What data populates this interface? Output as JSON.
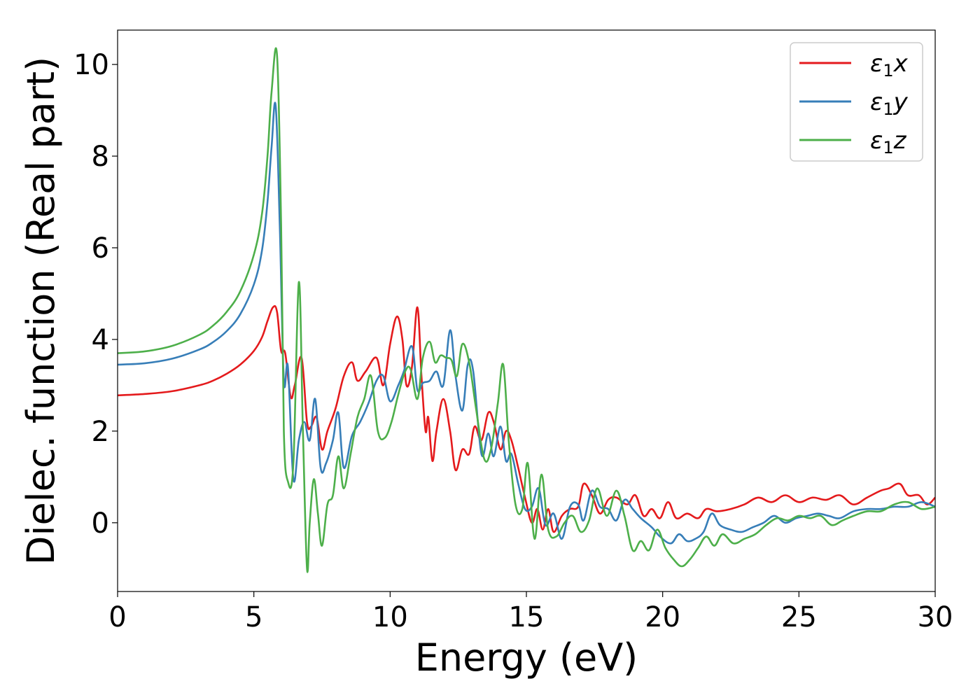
{
  "chart_data": {
    "type": "line",
    "xlabel": "Energy (eV)",
    "ylabel": "Dielec. function (Real part)",
    "xlim": [
      0,
      30
    ],
    "ylim": [
      -1.5,
      10.75
    ],
    "xticks": [
      0,
      5,
      10,
      15,
      20,
      25,
      30
    ],
    "yticks": [
      0,
      2,
      4,
      6,
      8,
      10
    ],
    "grid": false,
    "legend_position": "top-right",
    "series": [
      {
        "name": "ε₁x",
        "legend": {
          "base": "ε",
          "sub": "1",
          "var": "x"
        },
        "color": "#e41a1c",
        "x": [
          0,
          1,
          2,
          3,
          3.5,
          4,
          4.5,
          5,
          5.3,
          5.5,
          5.7,
          5.85,
          6.0,
          6.15,
          6.35,
          6.5,
          6.75,
          6.95,
          7.1,
          7.3,
          7.5,
          7.7,
          8.0,
          8.3,
          8.6,
          8.8,
          9.1,
          9.5,
          9.75,
          10.0,
          10.25,
          10.45,
          10.6,
          10.8,
          11.0,
          11.15,
          11.3,
          11.4,
          11.55,
          11.7,
          11.95,
          12.2,
          12.4,
          12.65,
          12.9,
          13.1,
          13.35,
          13.6,
          13.8,
          14.05,
          14.25,
          14.45,
          14.7,
          14.95,
          15.2,
          15.4,
          15.6,
          15.8,
          16.0,
          16.3,
          16.6,
          16.9,
          17.1,
          17.4,
          17.7,
          18.0,
          18.3,
          18.7,
          19.0,
          19.3,
          19.6,
          19.9,
          20.2,
          20.5,
          20.9,
          21.3,
          21.6,
          22.0,
          22.5,
          23.0,
          23.5,
          24.0,
          24.5,
          25.0,
          25.5,
          26.0,
          26.5,
          27.0,
          27.5,
          28.0,
          28.3,
          28.7,
          29.0,
          29.4,
          29.7,
          30.0
        ],
        "y": [
          2.78,
          2.81,
          2.87,
          3.0,
          3.1,
          3.25,
          3.45,
          3.75,
          4.05,
          4.4,
          4.7,
          4.6,
          3.75,
          3.7,
          2.75,
          3.0,
          3.6,
          2.2,
          2.1,
          2.3,
          1.6,
          2.0,
          2.5,
          3.2,
          3.5,
          3.1,
          3.3,
          3.6,
          3.0,
          3.9,
          4.5,
          4.0,
          3.0,
          3.4,
          4.7,
          3.2,
          2.0,
          2.3,
          1.35,
          2.0,
          2.7,
          2.0,
          1.15,
          1.6,
          1.5,
          2.1,
          1.8,
          2.4,
          2.2,
          1.6,
          2.0,
          1.8,
          1.2,
          0.55,
          0.0,
          0.3,
          -0.15,
          0.3,
          -0.2,
          0.15,
          0.3,
          0.35,
          0.85,
          0.6,
          0.2,
          0.5,
          0.55,
          0.4,
          0.6,
          0.15,
          0.3,
          0.1,
          0.45,
          0.1,
          0.2,
          0.1,
          0.3,
          0.25,
          0.3,
          0.4,
          0.55,
          0.45,
          0.6,
          0.45,
          0.55,
          0.5,
          0.6,
          0.4,
          0.55,
          0.7,
          0.75,
          0.85,
          0.6,
          0.6,
          0.4,
          0.55
        ]
      },
      {
        "name": "ε₁y",
        "legend": {
          "base": "ε",
          "sub": "1",
          "var": "y"
        },
        "color": "#377eb8",
        "x": [
          0,
          1,
          2,
          3,
          3.5,
          4,
          4.5,
          5,
          5.3,
          5.5,
          5.65,
          5.8,
          5.95,
          6.1,
          6.25,
          6.45,
          6.65,
          6.85,
          7.05,
          7.25,
          7.45,
          7.65,
          7.9,
          8.1,
          8.3,
          8.6,
          8.9,
          9.2,
          9.5,
          9.75,
          10.0,
          10.3,
          10.5,
          10.8,
          11.0,
          11.2,
          11.45,
          11.7,
          11.95,
          12.2,
          12.4,
          12.65,
          12.85,
          13.05,
          13.35,
          13.6,
          13.8,
          14.05,
          14.25,
          14.45,
          14.7,
          14.95,
          15.2,
          15.45,
          15.7,
          16.0,
          16.3,
          16.6,
          16.9,
          17.1,
          17.4,
          17.7,
          18.0,
          18.3,
          18.6,
          18.9,
          19.2,
          19.6,
          19.9,
          20.3,
          20.6,
          20.9,
          21.2,
          21.5,
          21.8,
          22.1,
          22.5,
          22.9,
          23.3,
          23.7,
          24.1,
          24.5,
          24.9,
          25.3,
          25.7,
          26.1,
          26.5,
          27.0,
          27.5,
          28.0,
          28.5,
          29.0,
          29.5,
          30.0
        ],
        "y": [
          3.45,
          3.48,
          3.58,
          3.78,
          3.94,
          4.18,
          4.55,
          5.2,
          5.95,
          7.0,
          8.2,
          9.1,
          6.5,
          3.1,
          3.4,
          0.95,
          1.8,
          2.2,
          1.8,
          2.7,
          1.2,
          1.3,
          1.8,
          2.4,
          1.2,
          1.9,
          2.2,
          2.6,
          3.1,
          3.2,
          2.65,
          3.0,
          3.3,
          3.85,
          2.9,
          3.05,
          3.1,
          3.3,
          3.0,
          4.2,
          3.2,
          2.45,
          3.45,
          3.3,
          1.5,
          1.95,
          1.45,
          2.1,
          1.35,
          1.5,
          0.85,
          0.3,
          0.35,
          0.75,
          -0.05,
          0.2,
          -0.35,
          0.35,
          0.4,
          0.05,
          0.7,
          0.35,
          0.3,
          0.05,
          0.5,
          0.3,
          0.1,
          -0.1,
          -0.3,
          -0.45,
          -0.25,
          -0.4,
          -0.35,
          -0.2,
          0.2,
          -0.05,
          -0.15,
          -0.2,
          -0.1,
          0.0,
          0.15,
          0.0,
          0.1,
          0.15,
          0.2,
          0.15,
          0.1,
          0.25,
          0.3,
          0.3,
          0.35,
          0.35,
          0.45,
          0.35
        ]
      },
      {
        "name": "ε₁z",
        "legend": {
          "base": "ε",
          "sub": "1",
          "var": "z"
        },
        "color": "#4daf4a",
        "x": [
          0,
          1,
          2,
          3,
          3.5,
          4,
          4.5,
          5,
          5.3,
          5.5,
          5.65,
          5.85,
          6.0,
          6.1,
          6.25,
          6.45,
          6.65,
          6.8,
          6.95,
          7.05,
          7.2,
          7.35,
          7.5,
          7.7,
          7.9,
          8.1,
          8.3,
          8.55,
          8.8,
          9.05,
          9.3,
          9.55,
          9.8,
          10.05,
          10.3,
          10.55,
          10.75,
          11.0,
          11.2,
          11.45,
          11.65,
          11.85,
          12.05,
          12.25,
          12.45,
          12.65,
          12.9,
          13.15,
          13.45,
          13.7,
          13.95,
          14.15,
          14.35,
          14.6,
          14.85,
          15.05,
          15.3,
          15.55,
          15.8,
          16.1,
          16.4,
          16.7,
          17.0,
          17.3,
          17.6,
          17.95,
          18.3,
          18.6,
          18.9,
          19.2,
          19.5,
          19.8,
          20.1,
          20.4,
          20.7,
          21.0,
          21.3,
          21.6,
          21.9,
          22.2,
          22.6,
          23.0,
          23.4,
          23.8,
          24.2,
          24.6,
          25.0,
          25.4,
          25.8,
          26.2,
          26.6,
          27.0,
          27.5,
          28.0,
          28.5,
          29.0,
          29.5,
          30.0
        ],
        "y": [
          3.7,
          3.74,
          3.86,
          4.1,
          4.3,
          4.6,
          5.05,
          5.85,
          6.75,
          8.0,
          9.4,
          10.2,
          6.5,
          2.0,
          0.9,
          1.3,
          5.25,
          2.0,
          -1.0,
          0.0,
          0.95,
          0.2,
          -0.5,
          0.4,
          0.6,
          1.45,
          0.75,
          1.5,
          2.3,
          2.7,
          3.2,
          2.0,
          1.85,
          2.2,
          2.8,
          3.3,
          3.35,
          2.7,
          3.6,
          3.95,
          3.5,
          3.65,
          3.6,
          3.55,
          3.2,
          3.9,
          3.5,
          2.5,
          1.4,
          1.6,
          2.6,
          3.45,
          1.8,
          0.4,
          0.3,
          1.3,
          -0.35,
          1.05,
          -0.15,
          -0.3,
          0.0,
          0.15,
          -0.2,
          0.05,
          0.75,
          0.15,
          0.7,
          0.15,
          -0.6,
          -0.4,
          -0.6,
          -0.15,
          -0.55,
          -0.8,
          -0.95,
          -0.8,
          -0.55,
          -0.3,
          -0.5,
          -0.25,
          -0.45,
          -0.35,
          -0.25,
          -0.05,
          0.1,
          0.05,
          0.15,
          0.1,
          0.15,
          -0.05,
          0.05,
          0.15,
          0.25,
          0.25,
          0.4,
          0.45,
          0.3,
          0.35
        ]
      }
    ]
  }
}
